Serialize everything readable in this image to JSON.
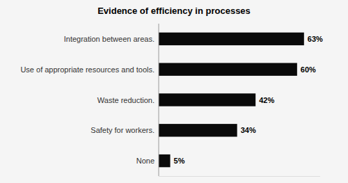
{
  "chart_data": {
    "type": "bar",
    "orientation": "horizontal",
    "title": "Evidence of efficiency in processes",
    "categories": [
      "None",
      "Safety for workers.",
      "Waste reduction.",
      "Use of appropriate resources and tools.",
      "Integration between areas."
    ],
    "values": [
      5,
      34,
      42,
      60,
      63
    ],
    "value_labels": [
      "5%",
      "34%",
      "42%",
      "60%",
      "63%"
    ],
    "color": "#0a0a0a",
    "xlim": [
      0,
      70
    ],
    "data_labels": true,
    "tick_labels": "y"
  }
}
